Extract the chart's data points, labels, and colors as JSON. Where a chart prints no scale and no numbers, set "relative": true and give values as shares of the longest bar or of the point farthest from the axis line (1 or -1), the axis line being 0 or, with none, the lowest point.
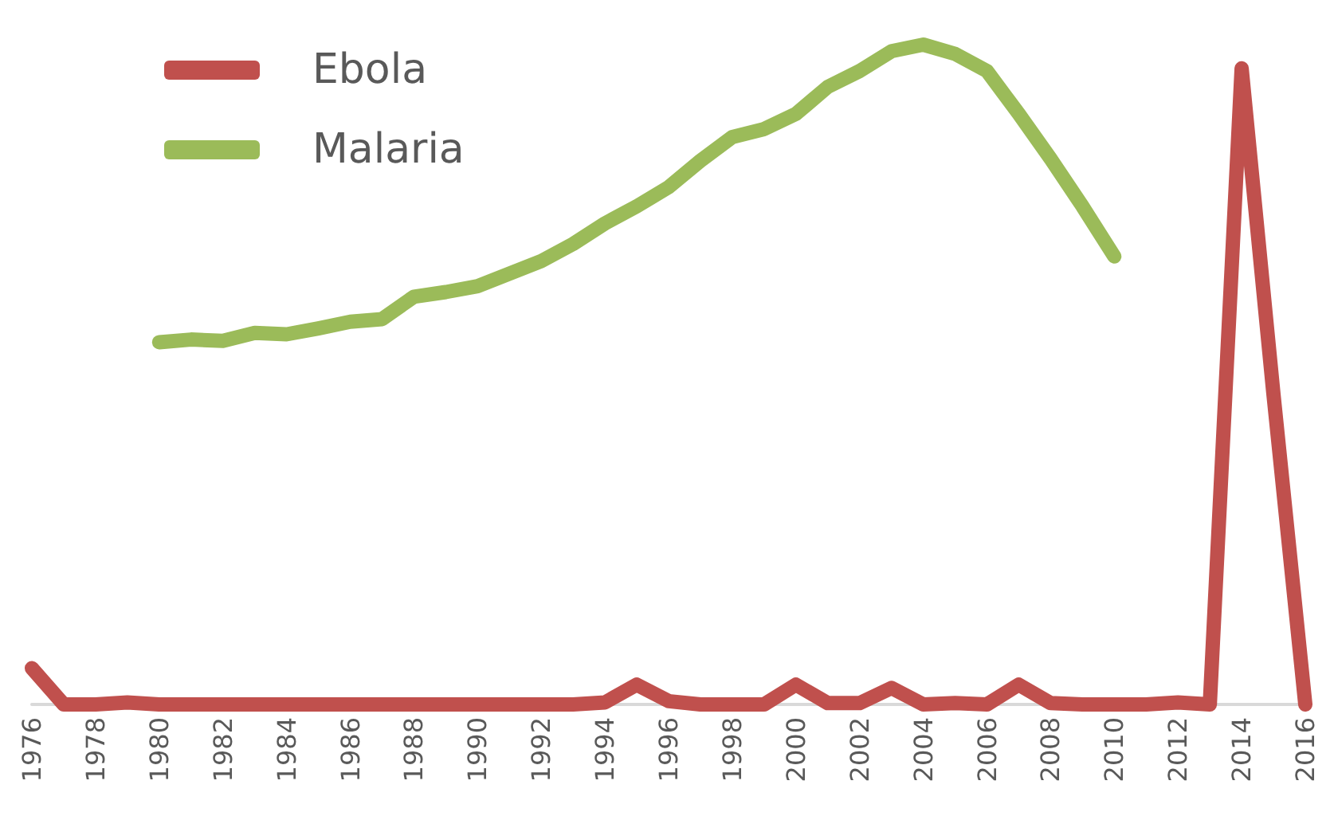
{
  "chart_data": {
    "type": "line",
    "relative": true,
    "categories": [
      "1976",
      null,
      "1978",
      null,
      "1980",
      null,
      "1982",
      null,
      "1984",
      null,
      "1986",
      null,
      "1988",
      null,
      "1990",
      null,
      "1992",
      null,
      "1994",
      null,
      "1996",
      null,
      "1998",
      null,
      "2000",
      null,
      "2002",
      null,
      "2004",
      null,
      "2006",
      null,
      "2008",
      null,
      "2010",
      null,
      "2012",
      null,
      "2014",
      null,
      "2016"
    ],
    "series": [
      {
        "name": "Ebola",
        "color": "#c0504d",
        "values": [
          0.055,
          0,
          0,
          0.003,
          0,
          0,
          0,
          0,
          0,
          0,
          0,
          0,
          0,
          0,
          0,
          0,
          0,
          0,
          0.003,
          0.03,
          0.005,
          0,
          0,
          0,
          0.03,
          0.002,
          0.002,
          0.025,
          0,
          0.002,
          0,
          0.03,
          0.002,
          0,
          0,
          0,
          0.003,
          0,
          0.964,
          0.47,
          0
        ]
      },
      {
        "name": "Malaria",
        "color": "#9bbb59",
        "values": [
          null,
          null,
          null,
          null,
          0.549,
          0.553,
          0.551,
          0.563,
          0.561,
          0.57,
          0.58,
          0.584,
          0.618,
          0.625,
          0.634,
          0.653,
          0.672,
          0.698,
          0.729,
          0.755,
          0.784,
          0.824,
          0.86,
          0.872,
          0.895,
          0.936,
          0.96,
          0.99,
          1,
          0.986,
          0.96,
          0.895,
          0.827,
          0.755,
          0.679,
          null,
          null,
          null,
          null,
          null,
          null
        ]
      }
    ],
    "legend": "top left",
    "grid": false,
    "line_style": "solid"
  }
}
